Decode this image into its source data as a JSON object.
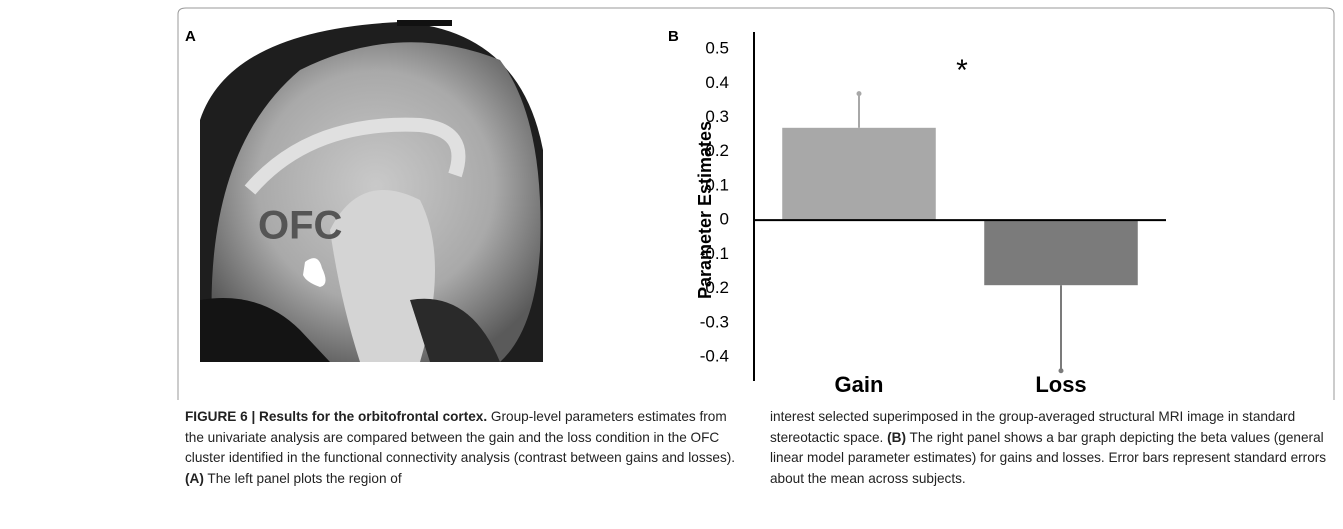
{
  "panel_a": {
    "label": "A",
    "region_label": "OFC"
  },
  "chart_data": {
    "type": "bar",
    "panel_label": "B",
    "ylabel": "Parameter Estimates",
    "categories": [
      "Gain",
      "Loss"
    ],
    "values": [
      0.27,
      -0.19
    ],
    "errors": [
      0.1,
      0.25
    ],
    "colors": [
      "#a8a8a8",
      "#7b7b7b"
    ],
    "annotation": "*",
    "ylim": [
      -0.47,
      0.55
    ],
    "yticks": [
      0.5,
      0.4,
      0.3,
      0.2,
      0.1,
      0,
      -0.1,
      -0.2,
      -0.3,
      -0.4
    ]
  },
  "caption": {
    "title": "FIGURE 6 | Results for the orbitofrontal cortex.",
    "text_1": " Group-level parameters estimates from the univariate analysis are compared between the gain and the loss condition in the OFC cluster identified in the functional connectivity analysis (contrast between gains and losses). ",
    "ref_a": "(A)",
    "text_2": " The left panel plots the region of",
    "text_3": "interest selected superimposed in the group-averaged structural MRI image in standard stereotactic space. ",
    "ref_b": "(B)",
    "text_4": " The right panel shows a bar graph depicting the beta values (general linear model parameter estimates) for gains and losses. Error bars represent standard errors about the mean across subjects."
  }
}
